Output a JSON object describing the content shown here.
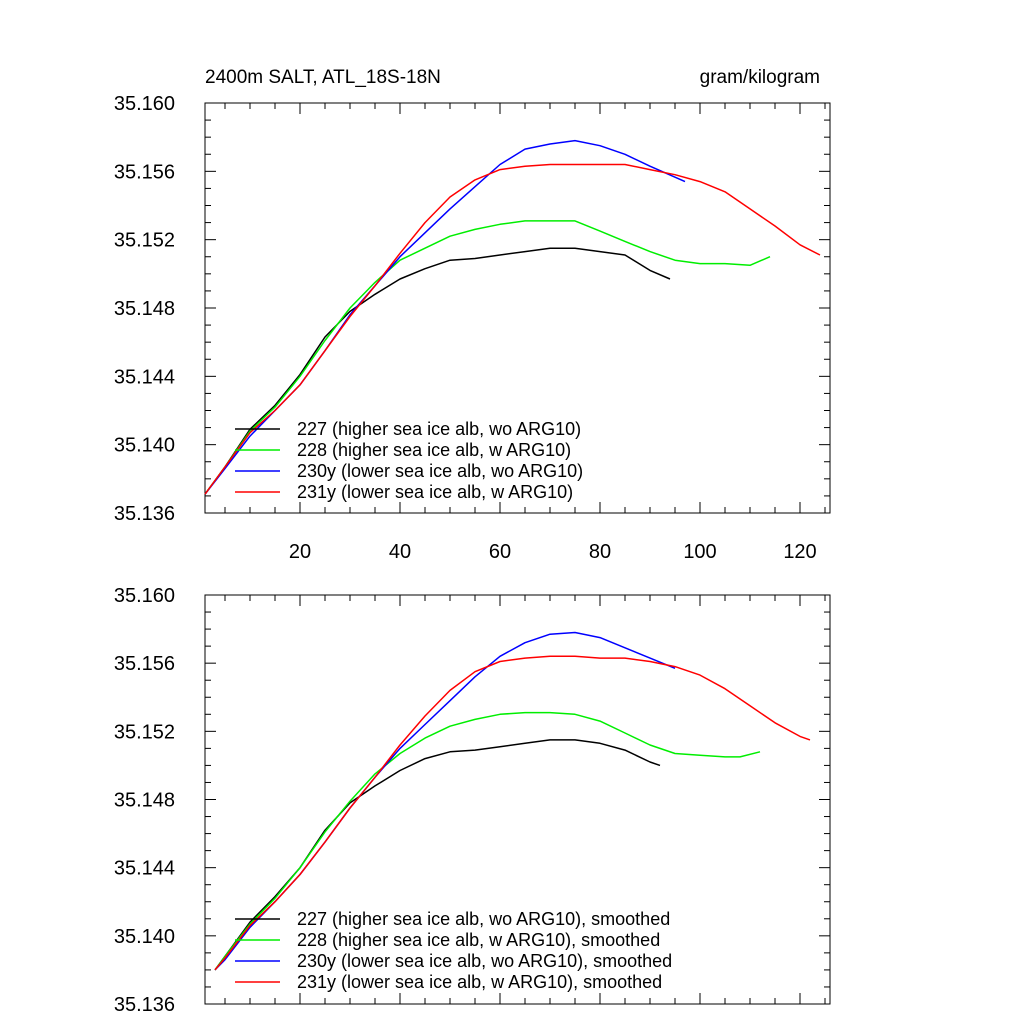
{
  "chart_data": [
    {
      "type": "line",
      "title_left": "2400m SALT, ATL_18S-18N",
      "title_right": "gram/kilogram",
      "xlabel": "",
      "ylabel": "",
      "xlim": [
        1,
        126
      ],
      "ylim": [
        35.136,
        35.16
      ],
      "xticks": [
        20,
        40,
        60,
        80,
        100,
        120
      ],
      "yticks": [
        35.136,
        35.14,
        35.144,
        35.148,
        35.152,
        35.156,
        35.16
      ],
      "ytick_labels": [
        "35.136",
        "35.140",
        "35.144",
        "35.148",
        "35.152",
        "35.156",
        "35.160"
      ],
      "show_xtick_labels": true,
      "legend": {
        "location": "bottom-left"
      },
      "series": [
        {
          "name": "227 (higher sea ice alb, wo ARG10)",
          "color": "#000000",
          "x": [
            1,
            5,
            10,
            15,
            20,
            25,
            30,
            35,
            40,
            45,
            50,
            55,
            60,
            65,
            70,
            75,
            80,
            85,
            90,
            94
          ],
          "y": [
            35.1371,
            35.1387,
            35.1409,
            35.1423,
            35.1441,
            35.1463,
            35.1478,
            35.1488,
            35.1497,
            35.1503,
            35.1508,
            35.1509,
            35.1511,
            35.1513,
            35.1515,
            35.1515,
            35.1513,
            35.1511,
            35.1502,
            35.1497
          ]
        },
        {
          "name": "228 (higher sea ice alb, w ARG10)",
          "color": "#00ee00",
          "x": [
            1,
            5,
            10,
            15,
            20,
            25,
            30,
            35,
            40,
            45,
            50,
            55,
            60,
            65,
            70,
            75,
            80,
            85,
            90,
            95,
            100,
            105,
            110,
            114
          ],
          "y": [
            35.1371,
            35.1387,
            35.1408,
            35.1422,
            35.144,
            35.1461,
            35.148,
            35.1495,
            35.1508,
            35.1515,
            35.1522,
            35.1526,
            35.1529,
            35.1531,
            35.1531,
            35.1531,
            35.1525,
            35.1519,
            35.1513,
            35.1508,
            35.1506,
            35.1506,
            35.1505,
            35.151
          ]
        },
        {
          "name": "230y (lower sea ice alb, wo ARG10)",
          "color": "#0000ff",
          "x": [
            1,
            5,
            10,
            15,
            20,
            25,
            30,
            35,
            40,
            45,
            50,
            55,
            60,
            65,
            70,
            75,
            80,
            85,
            90,
            97
          ],
          "y": [
            35.1371,
            35.1386,
            35.1405,
            35.142,
            35.1435,
            35.1455,
            35.1476,
            35.1493,
            35.151,
            35.1524,
            35.1538,
            35.1551,
            35.1564,
            35.1573,
            35.1576,
            35.1578,
            35.1575,
            35.157,
            35.1563,
            35.1554
          ]
        },
        {
          "name": "231y (lower sea ice alb, w ARG10)",
          "color": "#ff0000",
          "x": [
            1,
            5,
            10,
            15,
            20,
            25,
            30,
            35,
            40,
            45,
            50,
            55,
            60,
            65,
            70,
            75,
            80,
            85,
            90,
            95,
            100,
            105,
            110,
            115,
            120,
            124
          ],
          "y": [
            35.1371,
            35.1387,
            35.1407,
            35.142,
            35.1435,
            35.1455,
            35.1475,
            35.1493,
            35.1512,
            35.153,
            35.1545,
            35.1555,
            35.1561,
            35.1563,
            35.1564,
            35.1564,
            35.1564,
            35.1564,
            35.1561,
            35.1558,
            35.1554,
            35.1548,
            35.1538,
            35.1528,
            35.1517,
            35.1511
          ]
        }
      ]
    },
    {
      "type": "line",
      "title_left": "",
      "title_right": "",
      "xlabel": "",
      "ylabel": "",
      "xlim": [
        1,
        126
      ],
      "ylim": [
        35.136,
        35.16
      ],
      "xticks": [
        20,
        40,
        60,
        80,
        100,
        120
      ],
      "yticks": [
        35.136,
        35.14,
        35.144,
        35.148,
        35.152,
        35.156,
        35.16
      ],
      "ytick_labels": [
        "35.136",
        "35.140",
        "35.144",
        "35.148",
        "35.152",
        "35.156",
        "35.160"
      ],
      "show_xtick_labels": false,
      "legend": {
        "location": "bottom-left"
      },
      "series": [
        {
          "name": "227 (higher sea ice alb, wo ARG10), smoothed",
          "color": "#000000",
          "x": [
            3,
            5,
            10,
            15,
            20,
            25,
            30,
            35,
            40,
            45,
            50,
            55,
            60,
            65,
            70,
            75,
            80,
            85,
            90,
            92
          ],
          "y": [
            35.138,
            35.1388,
            35.1408,
            35.1423,
            35.144,
            35.1462,
            35.1478,
            35.1488,
            35.1497,
            35.1504,
            35.1508,
            35.1509,
            35.1511,
            35.1513,
            35.1515,
            35.1515,
            35.1513,
            35.1509,
            35.1502,
            35.15
          ]
        },
        {
          "name": "228 (higher sea ice alb, w ARG10), smoothed",
          "color": "#00ee00",
          "x": [
            3,
            5,
            10,
            15,
            20,
            25,
            30,
            35,
            40,
            45,
            50,
            55,
            60,
            65,
            70,
            75,
            80,
            85,
            90,
            95,
            100,
            105,
            108,
            112
          ],
          "y": [
            35.138,
            35.1388,
            35.1407,
            35.1422,
            35.144,
            35.1461,
            35.1479,
            35.1495,
            35.1507,
            35.1516,
            35.1523,
            35.1527,
            35.153,
            35.1531,
            35.1531,
            35.153,
            35.1526,
            35.1519,
            35.1512,
            35.1507,
            35.1506,
            35.1505,
            35.1505,
            35.1508
          ]
        },
        {
          "name": "230y (lower sea ice alb, wo ARG10), smoothed",
          "color": "#0000ff",
          "x": [
            3,
            5,
            10,
            15,
            20,
            25,
            30,
            35,
            40,
            45,
            50,
            55,
            60,
            65,
            70,
            75,
            80,
            85,
            90,
            95
          ],
          "y": [
            35.138,
            35.1386,
            35.1405,
            35.142,
            35.1436,
            35.1455,
            35.1475,
            35.1493,
            35.151,
            35.1524,
            35.1538,
            35.1552,
            35.1564,
            35.1572,
            35.1577,
            35.1578,
            35.1575,
            35.1569,
            35.1563,
            35.1557
          ]
        },
        {
          "name": "231y (lower sea ice alb, w ARG10), smoothed",
          "color": "#ff0000",
          "x": [
            3,
            5,
            10,
            15,
            20,
            25,
            30,
            35,
            40,
            45,
            50,
            55,
            60,
            65,
            70,
            75,
            80,
            85,
            90,
            95,
            100,
            105,
            110,
            115,
            120,
            122
          ],
          "y": [
            35.138,
            35.1387,
            35.1406,
            35.142,
            35.1436,
            35.1455,
            35.1475,
            35.1493,
            35.1512,
            35.1529,
            35.1544,
            35.1555,
            35.1561,
            35.1563,
            35.1564,
            35.1564,
            35.1563,
            35.1563,
            35.1561,
            35.1558,
            35.1553,
            35.1545,
            35.1535,
            35.1525,
            35.1517,
            35.1515
          ]
        }
      ]
    }
  ]
}
